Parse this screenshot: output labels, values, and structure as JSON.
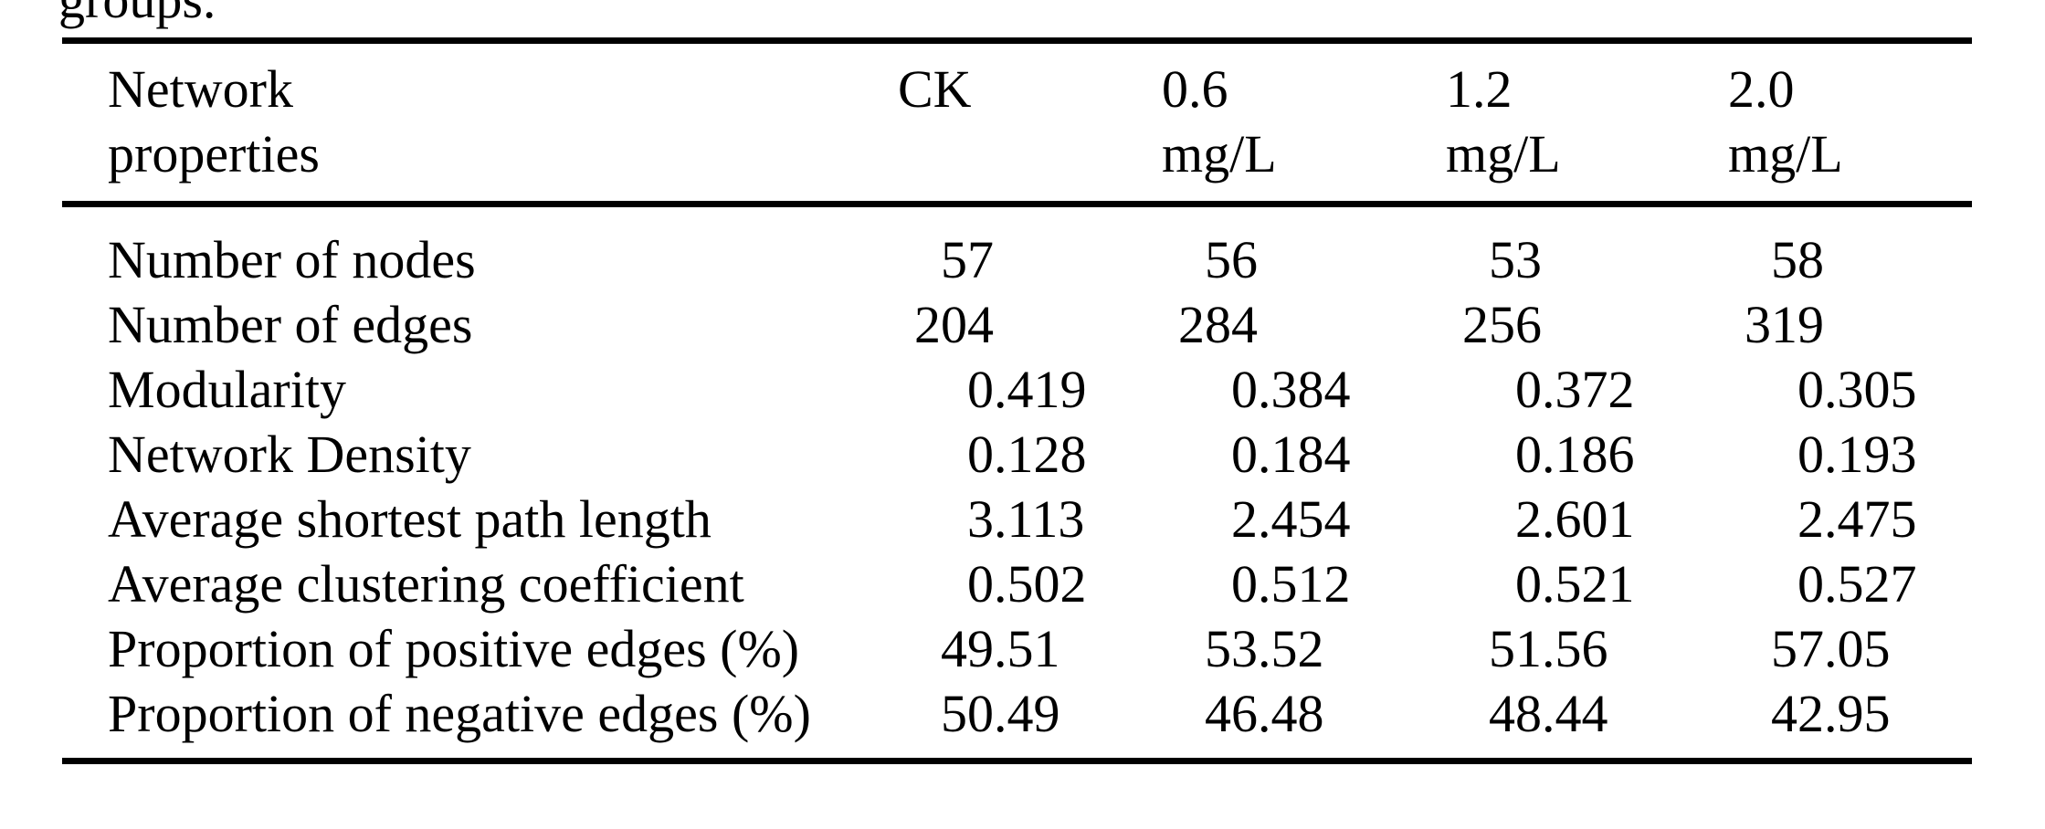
{
  "caption": {
    "fragment": "groups."
  },
  "table": {
    "columns": [
      "Network properties",
      "CK",
      "0.6 mg/L",
      "1.2 mg/L",
      "2.0 mg/L"
    ],
    "rows": [
      {
        "label": "Number of nodes",
        "values": [
          "57",
          "56",
          "53",
          "58"
        ]
      },
      {
        "label": "Number of edges",
        "values": [
          "204",
          "284",
          "256",
          "319"
        ]
      },
      {
        "label": "Modularity",
        "values": [
          "0.419",
          "0.384",
          "0.372",
          "0.305"
        ]
      },
      {
        "label": "Network Density",
        "values": [
          "0.128",
          "0.184",
          "0.186",
          "0.193"
        ]
      },
      {
        "label": "Average shortest path length",
        "values": [
          "3.113",
          "2.454",
          "2.601",
          "2.475"
        ]
      },
      {
        "label": "Average clustering coefficient",
        "values": [
          "0.502",
          "0.512",
          "0.521",
          "0.527"
        ]
      },
      {
        "label": "Proportion of positive edges (%)",
        "values": [
          "49.51",
          "53.52",
          "51.56",
          "57.05"
        ]
      },
      {
        "label": "Proportion of negative edges (%)",
        "values": [
          "50.49",
          "46.48",
          "48.44",
          "42.95"
        ]
      }
    ]
  }
}
